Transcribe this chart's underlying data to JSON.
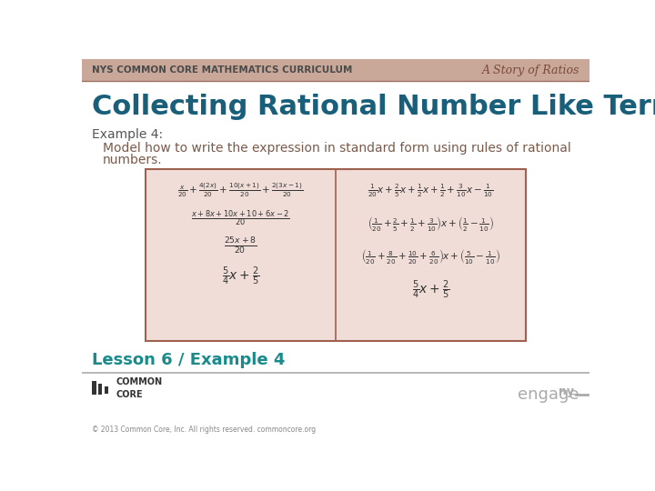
{
  "background_color": "#ffffff",
  "header_bg_color": "#c9a89a",
  "header_text": "NYS COMMON CORE MATHEMATICS CURRICULUM",
  "header_text_color": "#4a4a4a",
  "header_italic_text": "A Story of Ratios",
  "header_italic_color": "#7a4a3a",
  "title_text": "Collecting Rational Number Like Terms",
  "title_color": "#1a5f7a",
  "example_label": "Example 4:",
  "example_label_color": "#555555",
  "model_text_line1": "Model how to write the expression in standard form using rules of rational",
  "model_text_line2": "numbers.",
  "model_text_color": "#7a5a4a",
  "box_bg_color": "#f0ddd8",
  "box_border_color": "#a06050",
  "divider_color": "#a06050",
  "footer_lesson": "Lesson 6 / Example 4",
  "footer_lesson_color": "#1a8a8a",
  "footer_bar_color": "#aaaaaa",
  "footer_copyright": "© 2013 Common Core, Inc. All rights reserved. commoncore.org",
  "footer_copyright_color": "#888888",
  "engage_color": "#aaaaaa",
  "text_color": "#333333"
}
